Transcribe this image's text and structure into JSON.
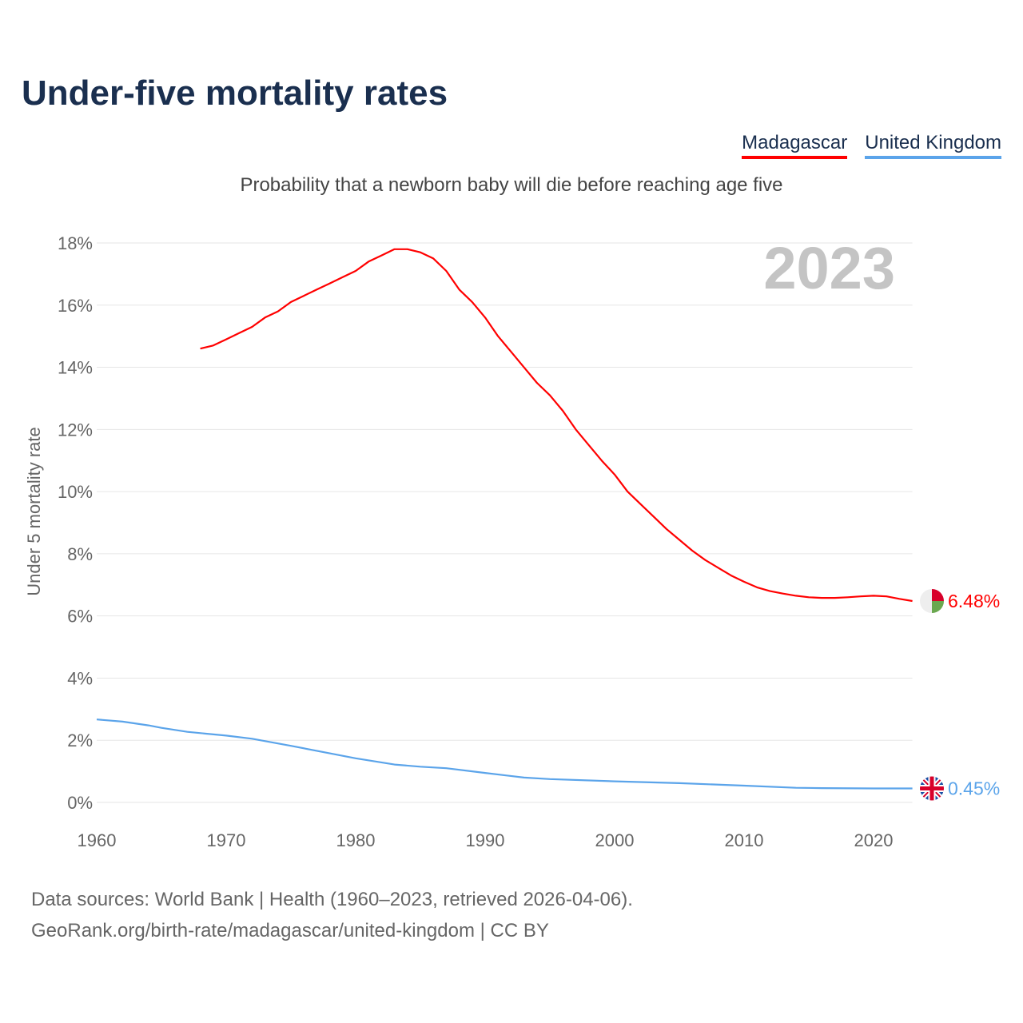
{
  "title": "Under-five mortality rates",
  "subtitle": "Probability that a newborn baby will die before reaching age five",
  "legend": [
    {
      "label": "Madagascar",
      "color": "#ff0000"
    },
    {
      "label": "United Kingdom",
      "color": "#5ba4ea"
    }
  ],
  "source": {
    "line1": "Data sources: World Bank | Health (1960–2023, retrieved 2026-04-06).",
    "line2": "GeoRank.org/birth-rate/madagascar/united-kingdom | CC BY"
  },
  "chart_data": {
    "type": "line",
    "title": "Under-five mortality rates",
    "ylabel": "Under 5 mortality rate",
    "xlabel": "",
    "year_label": "2023",
    "xlim": [
      1960,
      2023
    ],
    "ylim": [
      0,
      18
    ],
    "x_ticks": [
      "1960",
      "1970",
      "1980",
      "1990",
      "2000",
      "2010",
      "2020"
    ],
    "y_ticks": [
      "0%",
      "2%",
      "4%",
      "6%",
      "8%",
      "10%",
      "12%",
      "14%",
      "16%",
      "18%"
    ],
    "grid": true,
    "legend_position": "top-right",
    "series": [
      {
        "name": "Madagascar",
        "color": "#ff0000",
        "end_label": "6.48%",
        "x": [
          1968,
          1969,
          1970,
          1971,
          1972,
          1973,
          1974,
          1975,
          1976,
          1977,
          1978,
          1979,
          1980,
          1981,
          1982,
          1983,
          1984,
          1985,
          1986,
          1987,
          1988,
          1989,
          1990,
          1991,
          1992,
          1993,
          1994,
          1995,
          1996,
          1997,
          1998,
          1999,
          2000,
          2001,
          2002,
          2003,
          2004,
          2005,
          2006,
          2007,
          2008,
          2009,
          2010,
          2011,
          2012,
          2013,
          2014,
          2015,
          2016,
          2017,
          2018,
          2019,
          2020,
          2021,
          2022,
          2023
        ],
        "values": [
          14.6,
          14.7,
          14.9,
          15.1,
          15.3,
          15.6,
          15.8,
          16.1,
          16.3,
          16.5,
          16.7,
          16.9,
          17.1,
          17.4,
          17.6,
          17.8,
          17.8,
          17.7,
          17.5,
          17.1,
          16.5,
          16.1,
          15.6,
          15.0,
          14.5,
          14.0,
          13.5,
          13.1,
          12.6,
          12.0,
          11.5,
          11.0,
          10.55,
          10.0,
          9.6,
          9.2,
          8.8,
          8.45,
          8.1,
          7.8,
          7.55,
          7.3,
          7.1,
          6.92,
          6.8,
          6.72,
          6.65,
          6.6,
          6.58,
          6.58,
          6.6,
          6.63,
          6.65,
          6.63,
          6.55,
          6.48
        ]
      },
      {
        "name": "United Kingdom",
        "color": "#5ba4ea",
        "end_label": "0.45%",
        "x": [
          1960,
          1962,
          1964,
          1965,
          1967,
          1970,
          1972,
          1975,
          1978,
          1980,
          1983,
          1985,
          1987,
          1990,
          1993,
          1995,
          2000,
          2005,
          2010,
          2014,
          2016,
          2020,
          2023
        ],
        "values": [
          2.67,
          2.6,
          2.48,
          2.4,
          2.27,
          2.15,
          2.05,
          1.82,
          1.58,
          1.42,
          1.22,
          1.15,
          1.1,
          0.95,
          0.8,
          0.75,
          0.68,
          0.62,
          0.54,
          0.47,
          0.46,
          0.45,
          0.45
        ]
      }
    ]
  }
}
